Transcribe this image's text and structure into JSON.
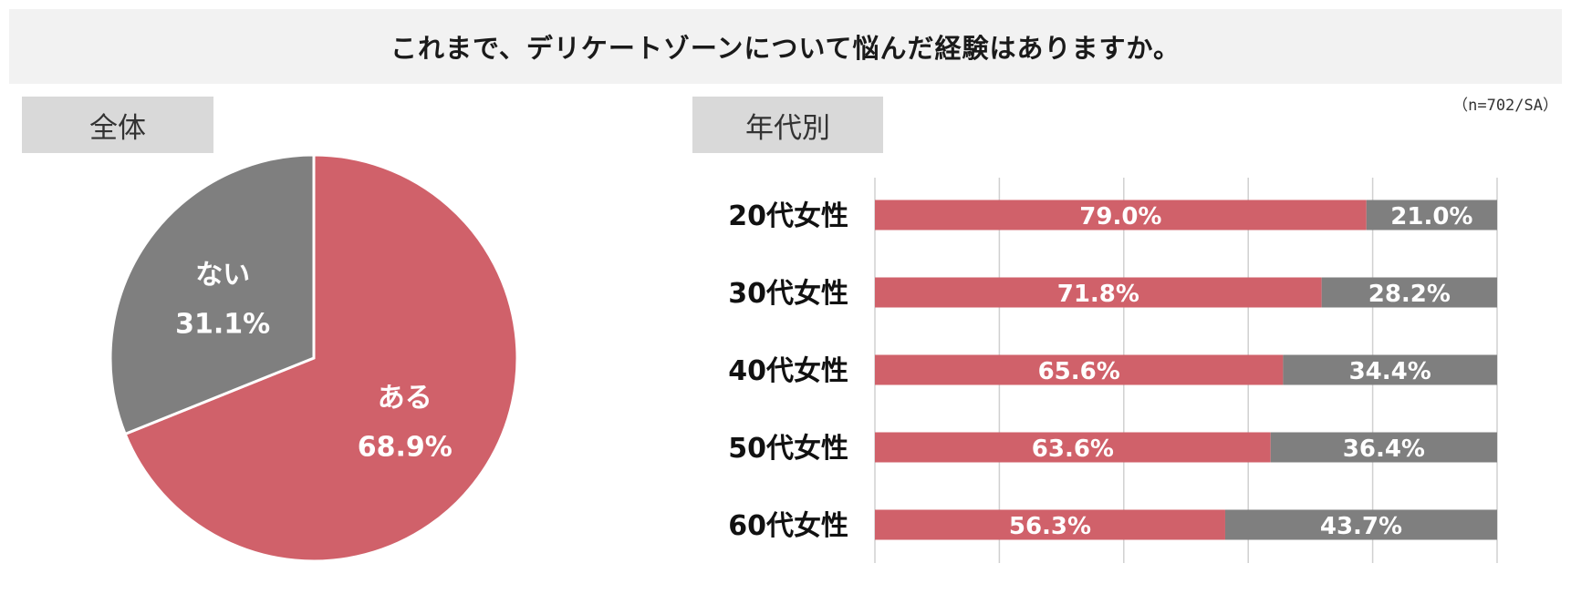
{
  "title": "これまで、デリケートゾーンについて悩んだ経験はありますか。",
  "sample_note": "（n=702/SA）",
  "colors": {
    "yes": "#d0616a",
    "no": "#7f7f7f",
    "grid": "#d0d0d0"
  },
  "chart_data": [
    {
      "type": "pie",
      "panel_label": "全体",
      "slices": [
        {
          "label": "ある",
          "value": 68.9,
          "display": "68.9%",
          "color": "#d0616a"
        },
        {
          "label": "ない",
          "value": 31.1,
          "display": "31.1%",
          "color": "#7f7f7f"
        }
      ]
    },
    {
      "type": "bar",
      "orientation": "horizontal",
      "stacked": true,
      "panel_label": "年代別",
      "categories": [
        "20代女性",
        "30代女性",
        "40代女性",
        "50代女性",
        "60代女性"
      ],
      "series": [
        {
          "color": "#d0616a",
          "values": [
            79.0,
            71.8,
            65.6,
            63.6,
            56.3
          ],
          "labels": [
            "79.0%",
            "71.8%",
            "65.6%",
            "63.6%",
            "56.3%"
          ]
        },
        {
          "color": "#7f7f7f",
          "values": [
            21.0,
            28.2,
            34.4,
            36.4,
            43.7
          ],
          "labels": [
            "21.0%",
            "28.2%",
            "34.4%",
            "36.4%",
            "43.7%"
          ]
        }
      ],
      "xlim": [
        0,
        100
      ],
      "grid": true
    }
  ]
}
